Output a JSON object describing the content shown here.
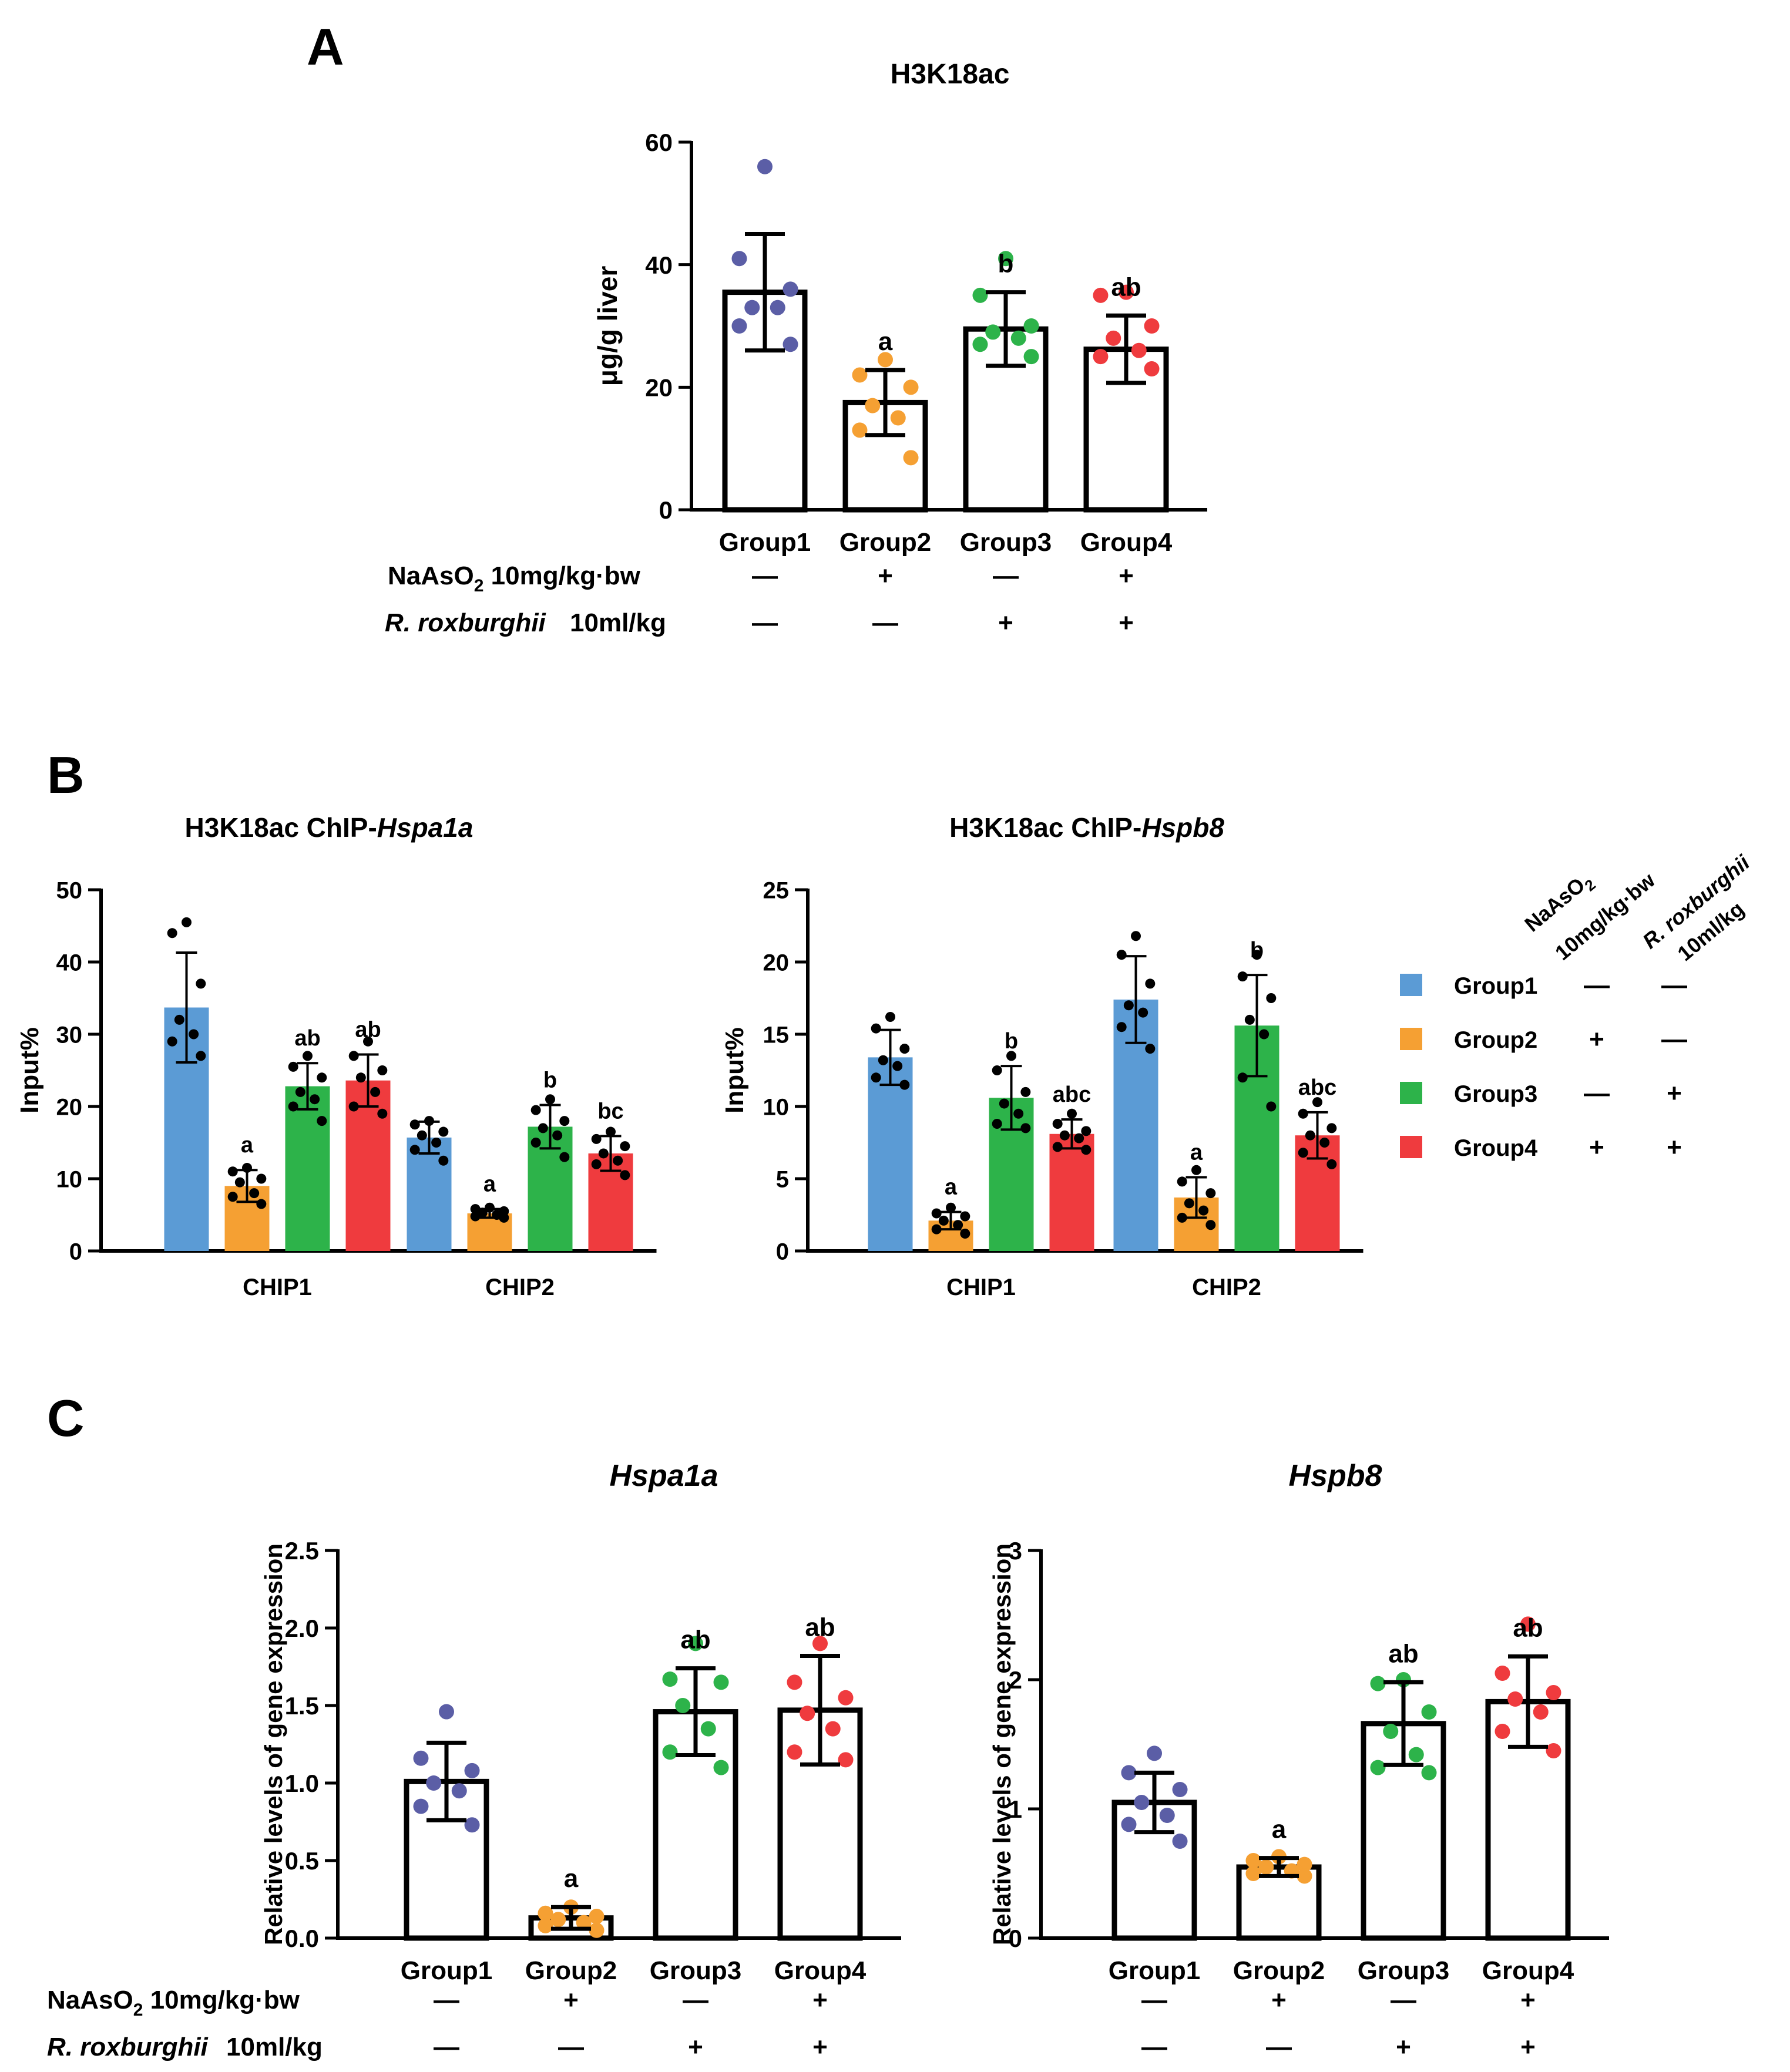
{
  "panel_labels": {
    "a": "A",
    "b": "B",
    "c": "C"
  },
  "treatments": {
    "naaso2_main": "NaAsO",
    "naaso2_sub": "2",
    "naaso2_dose": "10mg/kg·bw",
    "rr_name": "R. roxburghii",
    "rr_dose": "10ml/kg",
    "minus": "—",
    "plus": "+"
  },
  "legend": {
    "header_naaso2_main": "NaAsO",
    "header_naaso2_sub": "2",
    "header_naaso2_dose": "10mg/kg·bw",
    "header_rr_name": "R. roxburghii",
    "header_rr_dose": "10ml/kg",
    "header_color": "#A0181E",
    "items": [
      {
        "label": "Group1",
        "color": "#5B9BD5",
        "naaso2": "—",
        "rr": "—"
      },
      {
        "label": "Group2",
        "color": "#F5A033",
        "naaso2": "+",
        "rr": "—"
      },
      {
        "label": "Group3",
        "color": "#2DB34A",
        "naaso2": "—",
        "rr": "+"
      },
      {
        "label": "Group4",
        "color": "#EF3B3E",
        "naaso2": "+",
        "rr": "+"
      }
    ]
  },
  "chart_data": [
    {
      "id": "A",
      "type": "bar",
      "title": "H3K18ac",
      "ylabel": "μg/g liver",
      "ylim": [
        0,
        60
      ],
      "yticks": [
        "0",
        "20",
        "40",
        "60"
      ],
      "categories": [
        "Group1",
        "Group2",
        "Group3",
        "Group4"
      ],
      "naaso2": [
        "—",
        "+",
        "—",
        "+"
      ],
      "rr": [
        "—",
        "—",
        "+",
        "+"
      ],
      "values": [
        35.5,
        17.5,
        29.5,
        26.2
      ],
      "errors": [
        9.5,
        5.3,
        6.0,
        5.5
      ],
      "sig": [
        "",
        "a",
        "b",
        "ab"
      ],
      "point_colors": [
        "#5B5EA6",
        "#F5A033",
        "#2DB34A",
        "#EF3B3E"
      ],
      "points": [
        [
          56,
          41,
          36,
          33,
          33,
          30,
          27
        ],
        [
          24.5,
          22,
          20,
          17,
          15,
          13,
          8.5
        ],
        [
          41,
          35,
          30,
          29,
          28,
          27,
          25
        ],
        [
          35.5,
          35,
          30,
          28,
          26,
          25,
          23
        ]
      ]
    },
    {
      "id": "B1",
      "type": "bar",
      "title_main": "H3K18ac ChIP-",
      "title_gene": "Hspa1a",
      "ylabel": "Input%",
      "ylim": [
        0,
        50
      ],
      "yticks": [
        "0",
        "10",
        "20",
        "30",
        "40",
        "50"
      ],
      "categories": [
        "CHIP1",
        "CHIP2"
      ],
      "series": [
        {
          "name": "Group1",
          "values": [
            33.7,
            15.7
          ],
          "errors": [
            7.6,
            2.2
          ],
          "sig": [
            "",
            ""
          ],
          "points": [
            [
              45.5,
              44,
              37,
              32,
              30,
              29,
              27
            ],
            [
              18,
              17.5,
              16.5,
              16,
              15,
              14,
              12.5
            ]
          ]
        },
        {
          "name": "Group2",
          "values": [
            9.0,
            5.2
          ],
          "errors": [
            2.2,
            0.6
          ],
          "sig": [
            "a",
            "a"
          ],
          "points": [
            [
              11.5,
              11,
              10,
              9.5,
              8,
              7.5,
              6.5
            ],
            [
              6,
              5.8,
              5.5,
              5.3,
              5,
              4.8,
              4.6
            ]
          ]
        },
        {
          "name": "Group3",
          "values": [
            22.8,
            17.2
          ],
          "errors": [
            3.2,
            3.0
          ],
          "sig": [
            "ab",
            "b"
          ],
          "points": [
            [
              27,
              25.5,
              24,
              22,
              21,
              20,
              18
            ],
            [
              21,
              19.5,
              18,
              17,
              16,
              15,
              13
            ]
          ]
        },
        {
          "name": "Group4",
          "values": [
            23.6,
            13.5
          ],
          "errors": [
            3.6,
            2.4
          ],
          "sig": [
            "ab",
            "bc"
          ],
          "points": [
            [
              29,
              27,
              25,
              24,
              22,
              20,
              19
            ],
            [
              16.5,
              15.5,
              14.5,
              13.5,
              12.5,
              12,
              10.5
            ]
          ]
        }
      ]
    },
    {
      "id": "B2",
      "type": "bar",
      "title_main": "H3K18ac ChIP-",
      "title_gene": "Hspb8",
      "ylabel": "Input%",
      "ylim": [
        0,
        25
      ],
      "yticks": [
        "0",
        "5",
        "10",
        "15",
        "20",
        "25"
      ],
      "categories": [
        "CHIP1",
        "CHIP2"
      ],
      "series": [
        {
          "name": "Group1",
          "values": [
            13.4,
            17.4
          ],
          "errors": [
            1.9,
            3.0
          ],
          "sig": [
            "",
            ""
          ],
          "points": [
            [
              16.2,
              15.4,
              14,
              13.2,
              12.8,
              12,
              11.5
            ],
            [
              21.8,
              20.5,
              18.5,
              17,
              16.5,
              15.5,
              14
            ]
          ]
        },
        {
          "name": "Group2",
          "values": [
            2.1,
            3.7
          ],
          "errors": [
            0.6,
            1.4
          ],
          "sig": [
            "a",
            "a"
          ],
          "points": [
            [
              3,
              2.6,
              2.4,
              2.1,
              1.8,
              1.5,
              1.2
            ],
            [
              5.6,
              4.8,
              4,
              3.3,
              2.8,
              2.3,
              1.8
            ]
          ]
        },
        {
          "name": "Group3",
          "values": [
            10.6,
            15.6
          ],
          "errors": [
            2.2,
            3.5
          ],
          "sig": [
            "b",
            "b"
          ],
          "points": [
            [
              13.5,
              12.5,
              11,
              10.2,
              9.5,
              8.8,
              8.5
            ],
            [
              20.5,
              19,
              17.5,
              16,
              15,
              12,
              10
            ]
          ]
        },
        {
          "name": "Group4",
          "values": [
            8.1,
            8.0
          ],
          "errors": [
            1.0,
            1.6
          ],
          "sig": [
            "abc",
            "abc"
          ],
          "points": [
            [
              9.5,
              8.8,
              8.3,
              8,
              7.8,
              7.2,
              7
            ],
            [
              10.3,
              9.5,
              8.5,
              8,
              7.5,
              6.8,
              6
            ]
          ]
        }
      ]
    },
    {
      "id": "C1",
      "type": "bar",
      "title": "Hspa1a",
      "ylabel": "Relative levels of gene expression",
      "ylim": [
        0,
        2.5
      ],
      "yticks": [
        "0.0",
        "0.5",
        "1.0",
        "1.5",
        "2.0",
        "2.5"
      ],
      "categories": [
        "Group1",
        "Group2",
        "Group3",
        "Group4"
      ],
      "naaso2": [
        "—",
        "+",
        "—",
        "+"
      ],
      "rr": [
        "—",
        "—",
        "+",
        "+"
      ],
      "values": [
        1.01,
        0.13,
        1.46,
        1.47
      ],
      "errors": [
        0.25,
        0.07,
        0.28,
        0.35
      ],
      "sig": [
        "",
        "a",
        "ab",
        "ab"
      ],
      "point_colors": [
        "#5B5EA6",
        "#F5A033",
        "#2DB34A",
        "#EF3B3E"
      ],
      "points": [
        [
          1.46,
          1.16,
          1.08,
          1.0,
          0.95,
          0.85,
          0.73
        ],
        [
          0.2,
          0.16,
          0.14,
          0.12,
          0.1,
          0.08,
          0.05
        ],
        [
          1.9,
          1.67,
          1.65,
          1.5,
          1.35,
          1.2,
          1.1
        ],
        [
          1.9,
          1.65,
          1.55,
          1.45,
          1.35,
          1.2,
          1.15
        ]
      ]
    },
    {
      "id": "C2",
      "type": "bar",
      "title": "Hspb8",
      "ylabel": "Relative levels of gene expression",
      "ylim": [
        0,
        3
      ],
      "yticks": [
        "0",
        "1",
        "2",
        "3"
      ],
      "categories": [
        "Group1",
        "Group2",
        "Group3",
        "Group4"
      ],
      "naaso2": [
        "—",
        "+",
        "—",
        "+"
      ],
      "rr": [
        "—",
        "—",
        "+",
        "+"
      ],
      "values": [
        1.05,
        0.55,
        1.66,
        1.83
      ],
      "errors": [
        0.23,
        0.07,
        0.32,
        0.35
      ],
      "sig": [
        "",
        "a",
        "ab",
        "ab"
      ],
      "point_colors": [
        "#5B5EA6",
        "#F5A033",
        "#2DB34A",
        "#EF3B3E"
      ],
      "points": [
        [
          1.43,
          1.28,
          1.15,
          1.05,
          0.95,
          0.88,
          0.75
        ],
        [
          0.63,
          0.6,
          0.57,
          0.55,
          0.52,
          0.5,
          0.48
        ],
        [
          2.0,
          1.97,
          1.75,
          1.6,
          1.42,
          1.32,
          1.28
        ],
        [
          2.43,
          2.05,
          1.9,
          1.85,
          1.75,
          1.6,
          1.45
        ]
      ]
    }
  ]
}
